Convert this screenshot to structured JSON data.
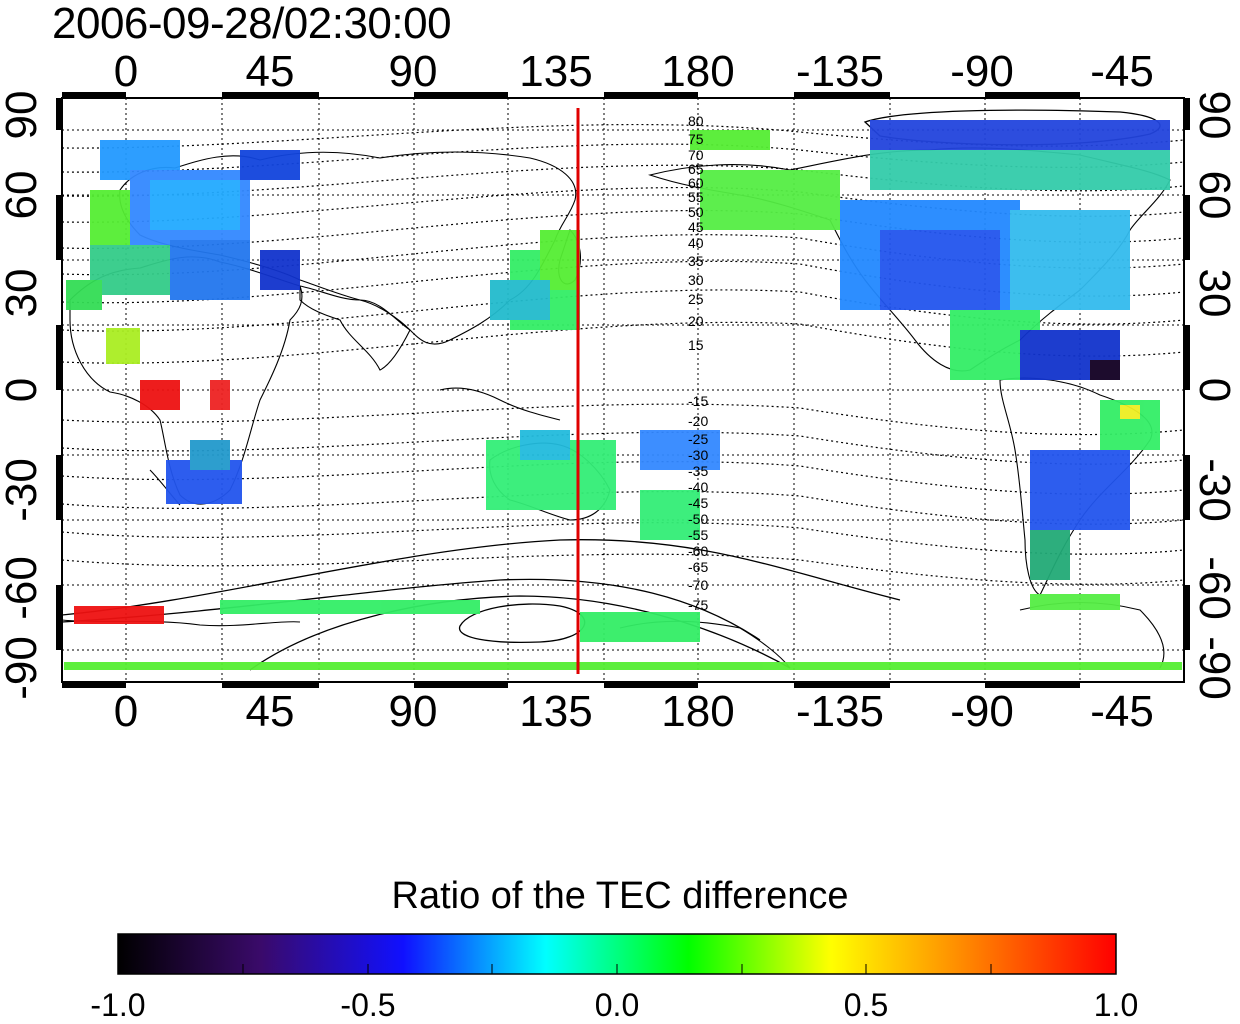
{
  "timestamp": "2006-09-28/02:30:00",
  "longitude_ticks": [
    "0",
    "45",
    "90",
    "135",
    "180",
    "-135",
    "-90",
    "-45"
  ],
  "latitude_ticks": [
    "90",
    "60",
    "30",
    "0",
    "-30",
    "-60",
    "-90"
  ],
  "contour_labels_north": [
    "80",
    "75",
    "70",
    "65",
    "60",
    "55",
    "50",
    "45",
    "40",
    "35",
    "30",
    "25",
    "20",
    "15"
  ],
  "contour_labels_south": [
    "-15",
    "-20",
    "-25",
    "-30",
    "-35",
    "-40",
    "-45",
    "-50",
    "-55",
    "-60",
    "-65",
    "-70",
    "-75"
  ],
  "marker_line": {
    "longitude": 142,
    "color": "#e00000"
  },
  "colorbar": {
    "title": "Ratio of the TEC difference",
    "labels": [
      "-1.0",
      "-0.5",
      "0.0",
      "0.5",
      "1.0"
    ],
    "range": [
      -1.0,
      1.0
    ],
    "colors": [
      "#000000",
      "#3a0a6a",
      "#1010ff",
      "#00ffff",
      "#00ff00",
      "#ffff00",
      "#ff8000",
      "#ff0000"
    ]
  }
}
